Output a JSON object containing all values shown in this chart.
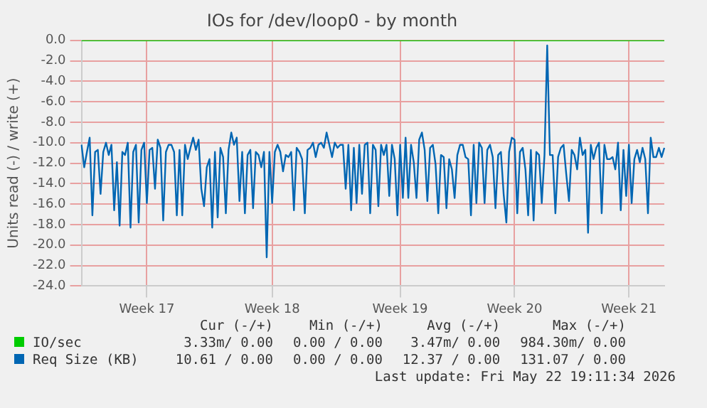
{
  "chart_data": {
    "type": "line",
    "title": "IOs for /dev/loop0 - by month",
    "ylabel": "Units read (-) / write (+)",
    "categories": [
      null,
      null,
      null,
      null,
      null,
      null,
      null,
      null,
      null,
      null,
      null,
      null,
      null,
      null,
      null,
      null,
      null,
      null,
      null,
      null,
      null,
      null,
      null,
      null,
      "Week 17",
      null,
      null,
      null,
      null,
      null,
      null,
      null,
      null,
      null,
      null,
      null,
      null,
      null,
      null,
      null,
      null,
      null,
      null,
      null,
      null,
      null,
      null,
      null,
      null,
      null,
      null,
      null,
      null,
      null,
      null,
      null,
      null,
      null,
      null,
      null,
      null,
      null,
      null,
      null,
      null,
      null,
      null,
      null,
      null,
      null,
      "Week 18",
      null,
      null,
      null,
      null,
      null,
      null,
      null,
      null,
      null,
      null,
      null,
      null,
      null,
      null,
      null,
      null,
      null,
      null,
      null,
      null,
      null,
      null,
      null,
      null,
      null,
      null,
      null,
      null,
      null,
      null,
      null,
      null,
      null,
      null,
      null,
      null,
      null,
      null,
      null,
      null,
      null,
      null,
      null,
      null,
      null,
      null,
      "Week 19",
      null,
      null,
      null,
      null,
      null,
      null,
      null,
      null,
      null,
      null,
      null,
      null,
      null,
      null,
      null,
      null,
      null,
      null,
      null,
      null,
      null,
      null,
      null,
      null,
      null,
      null,
      null,
      null,
      null,
      null,
      null,
      null,
      null,
      null,
      null,
      null,
      null,
      null,
      null,
      null,
      null,
      "Week 20",
      null,
      null,
      null,
      null,
      null,
      null,
      null,
      null,
      null,
      null,
      null,
      null,
      null,
      null,
      null,
      null,
      null,
      null,
      null,
      null,
      null,
      null,
      null,
      null,
      null,
      null,
      null,
      null,
      null,
      null,
      null,
      null,
      null,
      null,
      null,
      null,
      null,
      null,
      null,
      null,
      null,
      "Week 21",
      null,
      null,
      null,
      null,
      null,
      null,
      null,
      null,
      null,
      null,
      null,
      null,
      null
    ],
    "ylim": [
      -24,
      0
    ],
    "yticks": [
      {
        "value": -24,
        "label": "-24.0"
      },
      {
        "value": -22,
        "label": "-22.0"
      },
      {
        "value": -20,
        "label": "-20.0"
      },
      {
        "value": -18,
        "label": "-18.0"
      },
      {
        "value": -16,
        "label": "-16.0"
      },
      {
        "value": -14,
        "label": "-14.0"
      },
      {
        "value": -12,
        "label": "-12.0"
      },
      {
        "value": -10,
        "label": "-10.0"
      },
      {
        "value": -8,
        "label": "-8.0"
      },
      {
        "value": -6,
        "label": "-6.0"
      },
      {
        "value": -4,
        "label": "-4.0"
      },
      {
        "value": -2,
        "label": "-2.0"
      },
      {
        "value": 0,
        "label": "0.0"
      }
    ],
    "grid": true,
    "legend": "bottom",
    "marker": "none",
    "line_style": "solid",
    "series": [
      {
        "name": "IO/sec",
        "color": "#00cc00",
        "values": [
          0,
          0,
          0,
          0,
          0,
          0,
          0,
          0,
          0,
          0,
          0,
          0,
          0,
          0,
          0,
          0,
          0,
          0,
          0,
          0,
          0,
          0,
          0,
          0,
          0,
          0,
          0,
          0,
          0,
          0,
          0,
          0,
          0,
          0,
          0,
          0,
          0,
          0,
          0,
          0,
          0,
          0,
          0,
          0,
          0,
          0,
          0,
          0,
          0,
          0,
          0,
          0,
          0,
          0,
          0,
          0,
          0,
          0,
          0,
          0,
          0,
          0,
          0,
          0,
          0,
          0,
          0,
          0,
          0,
          0,
          0,
          0,
          0,
          0,
          0,
          0,
          0,
          0,
          0,
          0,
          0,
          0,
          0,
          0,
          0,
          0,
          0,
          0,
          0,
          0,
          0,
          0,
          0,
          0,
          0,
          0,
          0,
          0,
          0,
          0,
          0,
          0,
          0,
          0,
          0,
          0,
          0,
          0,
          0,
          0,
          0,
          0,
          0,
          0,
          0,
          0,
          0,
          0,
          0,
          0,
          0,
          0,
          0,
          0,
          0,
          0,
          0,
          0,
          0,
          0,
          0,
          0,
          0,
          0,
          0,
          0,
          0,
          0,
          0,
          0,
          0,
          0,
          0,
          0,
          0,
          0,
          0,
          0,
          0,
          0,
          0,
          0,
          0,
          0,
          0,
          0,
          0,
          0,
          0,
          0,
          0,
          0,
          0,
          0,
          0,
          0,
          0,
          0,
          0,
          0,
          0,
          0,
          0,
          0,
          0,
          0,
          0,
          0,
          0,
          0,
          0,
          0,
          0,
          0,
          0,
          0,
          0,
          0,
          0,
          0,
          0,
          0,
          0,
          0,
          0,
          0,
          0,
          0,
          0,
          0,
          0,
          0,
          0,
          0,
          0,
          0,
          0,
          0,
          0,
          0,
          0,
          0,
          0,
          0,
          0
        ]
      },
      {
        "name": "Req Size (KB)",
        "color": "#0066b3",
        "values": [
          -10.2,
          -12.4,
          -10.9,
          -9.5,
          -17.1,
          -10.9,
          -10.7,
          -15.0,
          -10.9,
          -10.0,
          -11.2,
          -10.2,
          -16.6,
          -11.9,
          -18.1,
          -10.9,
          -11.2,
          -10.0,
          -18.3,
          -10.9,
          -10.2,
          -17.8,
          -10.7,
          -10.0,
          -15.9,
          -10.7,
          -10.5,
          -14.5,
          -9.7,
          -10.5,
          -17.6,
          -10.9,
          -10.2,
          -10.2,
          -10.9,
          -17.1,
          -10.7,
          -17.1,
          -10.2,
          -11.6,
          -10.5,
          -9.5,
          -10.7,
          -9.7,
          -14.5,
          -16.2,
          -12.4,
          -11.6,
          -18.3,
          -10.9,
          -17.3,
          -10.5,
          -11.4,
          -16.9,
          -10.7,
          -9.0,
          -10.2,
          -9.5,
          -15.7,
          -10.9,
          -16.9,
          -11.2,
          -10.7,
          -16.4,
          -10.9,
          -11.2,
          -12.4,
          -10.9,
          -21.2,
          -10.9,
          -15.9,
          -10.9,
          -10.2,
          -10.9,
          -12.8,
          -11.2,
          -11.4,
          -10.9,
          -16.6,
          -10.5,
          -10.9,
          -11.6,
          -16.9,
          -10.7,
          -10.5,
          -10.0,
          -11.4,
          -10.2,
          -10.0,
          -10.5,
          -9.0,
          -10.2,
          -11.4,
          -10.0,
          -10.5,
          -10.2,
          -10.2,
          -14.5,
          -10.2,
          -16.6,
          -10.5,
          -15.9,
          -10.2,
          -15.0,
          -10.2,
          -10.0,
          -16.9,
          -10.2,
          -10.7,
          -16.2,
          -10.2,
          -11.2,
          -10.2,
          -15.2,
          -10.2,
          -11.6,
          -17.1,
          -10.2,
          -15.4,
          -9.5,
          -15.4,
          -10.2,
          -11.9,
          -15.4,
          -9.7,
          -9.0,
          -10.7,
          -15.7,
          -10.5,
          -10.2,
          -12.1,
          -16.9,
          -11.2,
          -11.4,
          -16.4,
          -11.6,
          -12.6,
          -15.4,
          -11.2,
          -10.2,
          -10.2,
          -11.4,
          -11.6,
          -17.1,
          -10.2,
          -15.9,
          -10.0,
          -10.5,
          -15.9,
          -10.7,
          -10.2,
          -11.4,
          -16.4,
          -11.2,
          -10.9,
          -15.0,
          -17.8,
          -10.9,
          -9.5,
          -9.7,
          -16.9,
          -10.9,
          -10.5,
          -12.6,
          -17.1,
          -10.7,
          -17.6,
          -10.9,
          -11.2,
          -15.9,
          -11.2,
          -0.5,
          -11.2,
          -11.2,
          -16.9,
          -11.4,
          -10.5,
          -10.2,
          -13.1,
          -15.7,
          -10.7,
          -11.2,
          -12.6,
          -9.5,
          -11.2,
          -10.7,
          -18.8,
          -10.2,
          -11.6,
          -10.5,
          -10.0,
          -16.9,
          -10.2,
          -11.6,
          -11.6,
          -11.4,
          -12.6,
          -10.0,
          -16.6,
          -10.7,
          -15.2,
          -10.2,
          -15.9,
          -11.6,
          -10.7,
          -11.9,
          -10.5,
          -11.6,
          -16.9,
          -9.5,
          -11.4,
          -11.4,
          -10.5,
          -11.4,
          -10.5
        ]
      }
    ],
    "annotations": [
      "Cur (-/+)",
      "Min (-/+)",
      "Avg (-/+)",
      "Max (-/+)",
      "3.33m/ 0.00",
      "0.00 / 0.00",
      "3.47m/ 0.00",
      "984.30m/ 0.00",
      "10.61 / 0.00",
      "0.00 / 0.00",
      "12.37 / 0.00",
      "131.07 / 0.00",
      "Last update: Fri May 22 19:11:34 2026"
    ]
  }
}
